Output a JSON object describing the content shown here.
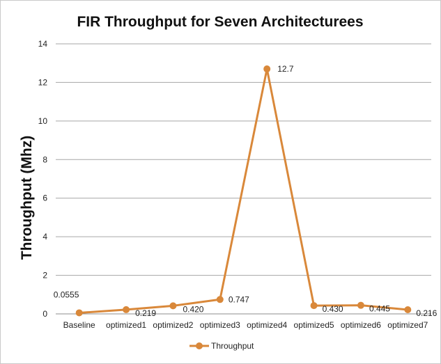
{
  "chart_data": {
    "type": "line",
    "title": "FIR Throughput for Seven Architecturees",
    "xlabel": "",
    "ylabel": "Throughput (Mhz)",
    "ylim": [
      0,
      14
    ],
    "yticks": [
      0,
      2,
      4,
      6,
      8,
      10,
      12,
      14
    ],
    "grid": true,
    "legend": "bottom",
    "categories": [
      "Baseline",
      "optimized1",
      "optimized2",
      "optimized3",
      "optimized4",
      "optimized5",
      "optimized6",
      "optimized7"
    ],
    "series": [
      {
        "name": "Throughput",
        "color": "#d9883a",
        "values": [
          0.0555,
          0.219,
          0.42,
          0.747,
          12.7,
          0.43,
          0.445,
          0.216
        ],
        "data_labels": [
          "0.0555",
          "0.219",
          "0.420",
          "0.747",
          "12.7",
          "0.430",
          "0.445",
          "0.216"
        ]
      }
    ]
  }
}
